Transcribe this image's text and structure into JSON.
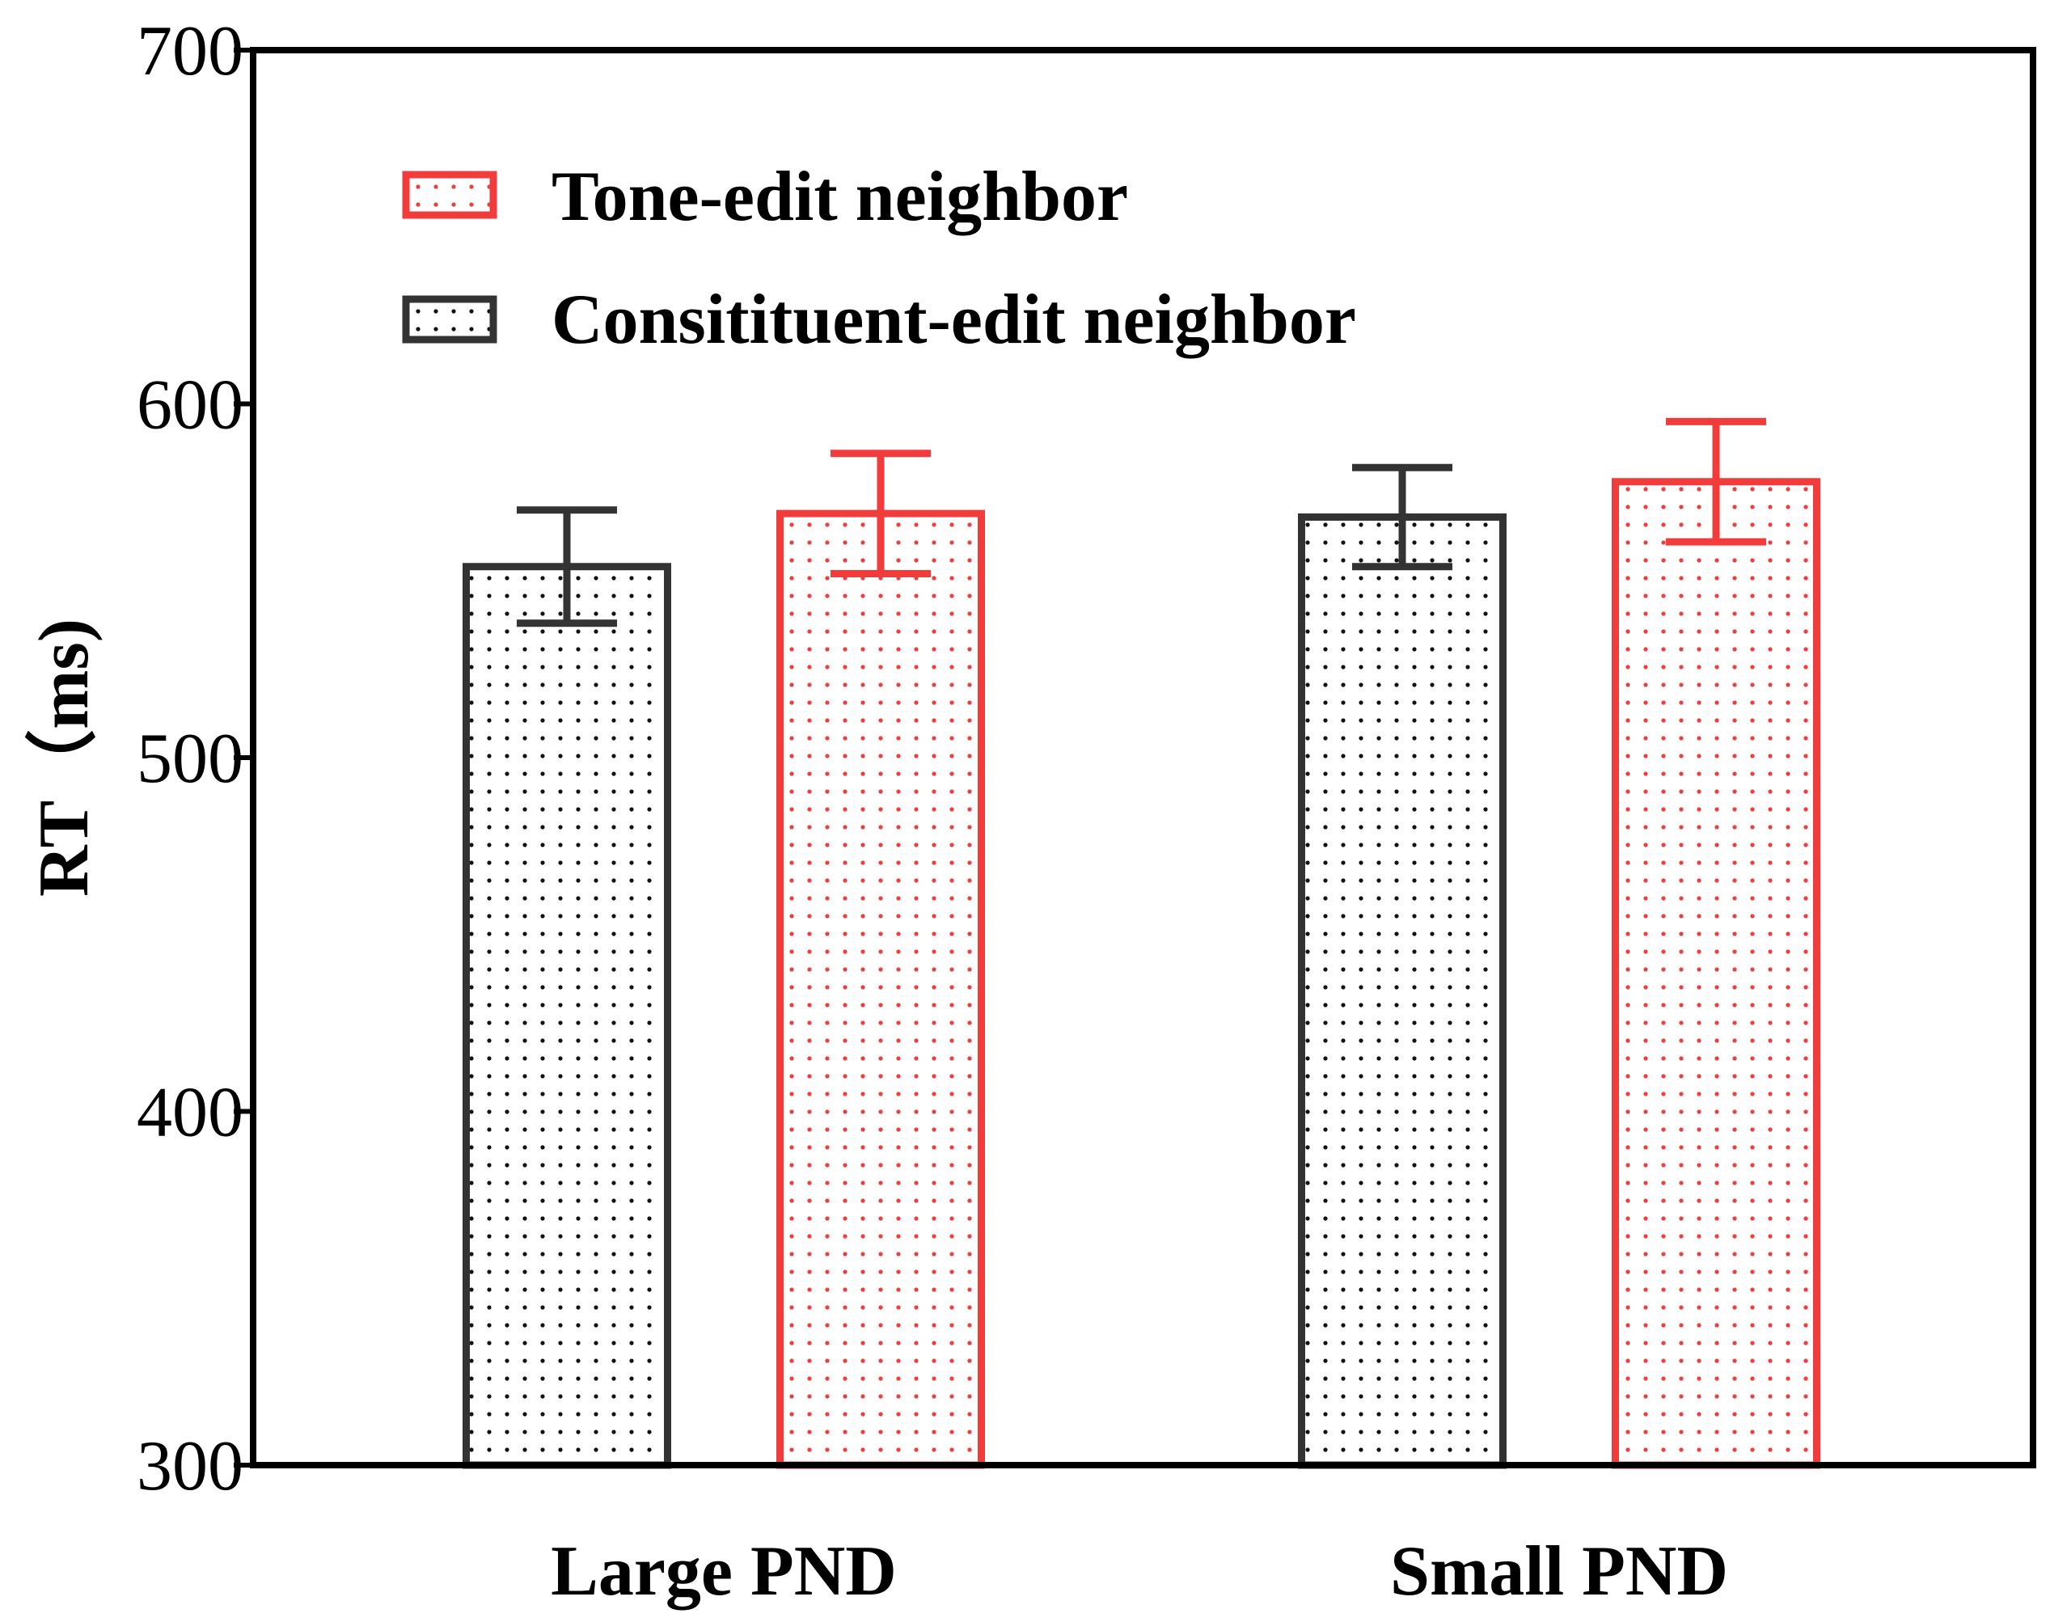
{
  "chart_data": {
    "type": "bar",
    "title": "",
    "xlabel": "",
    "ylabel": "RT（ms)",
    "ylim": [
      300,
      700
    ],
    "yticks": [
      300,
      400,
      500,
      600,
      700
    ],
    "categories": [
      "Large PND",
      "Small PND"
    ],
    "series": [
      {
        "name": "Consitituent-edit neighbor",
        "color": "#333333",
        "values": [
          554,
          568
        ],
        "errors": [
          16,
          14
        ]
      },
      {
        "name": "Tone-edit neighbor",
        "color": "#f23c3c",
        "values": [
          569,
          578
        ],
        "errors": [
          17,
          17
        ]
      }
    ],
    "legend": {
      "position": "top-left",
      "order": [
        "Tone-edit neighbor",
        "Consitituent-edit neighbor"
      ]
    },
    "grid": false,
    "bar_pattern": "dotted"
  }
}
